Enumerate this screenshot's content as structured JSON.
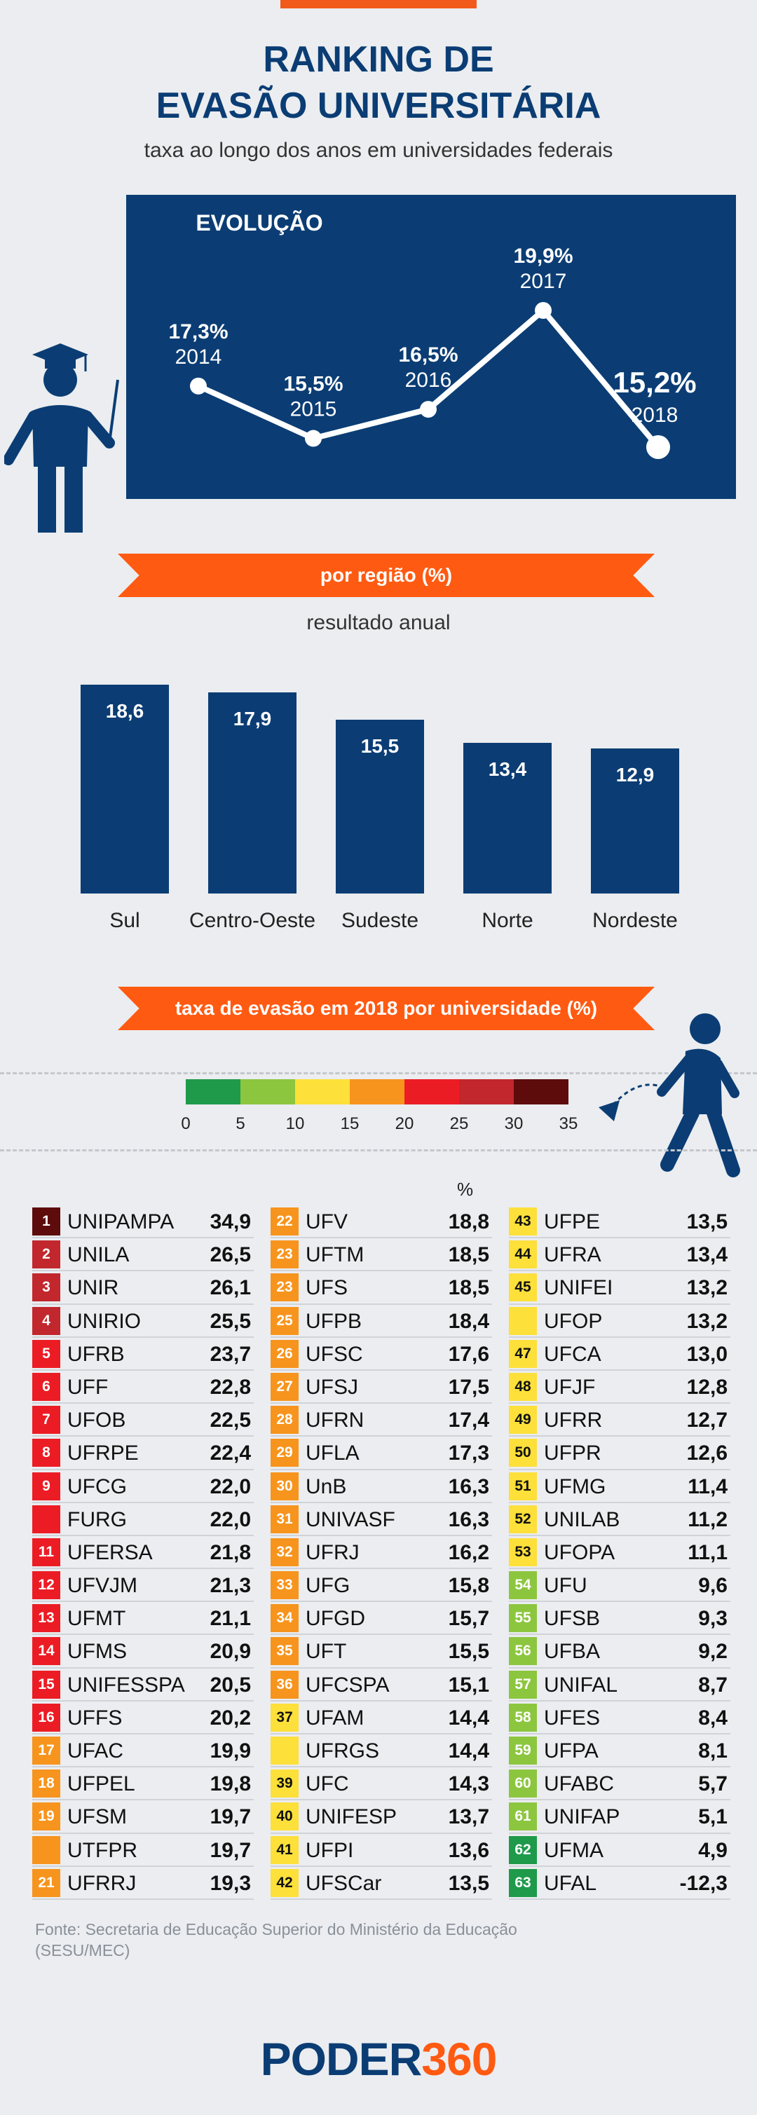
{
  "header": {
    "title_line1": "RANKING DE",
    "title_line2": "EVASÃO UNIVERSITÁRIA",
    "subtitle": "taxa ao longo dos anos em universidades federais"
  },
  "colors": {
    "navy": "#0b3d74",
    "orange": "#ff5a12",
    "scale": [
      "#1e9a4a",
      "#8cc63f",
      "#fde03a",
      "#f7941d",
      "#ec1c24",
      "#c1272d",
      "#5e0b0b"
    ]
  },
  "chart_data": [
    {
      "type": "line",
      "title": "EVOLUÇÃO",
      "x": [
        "2014",
        "2015",
        "2016",
        "2017",
        "2018"
      ],
      "values": [
        17.3,
        15.5,
        16.5,
        19.9,
        15.2
      ],
      "labels": [
        "17,3%",
        "15,5%",
        "16,5%",
        "19,9%",
        "15,2%"
      ]
    },
    {
      "type": "bar",
      "title": "por região (%)",
      "subtitle": "resultado anual",
      "categories": [
        "Sul",
        "Centro-Oeste",
        "Sudeste",
        "Norte",
        "Nordeste"
      ],
      "values": [
        18.6,
        17.9,
        15.5,
        13.4,
        12.9
      ],
      "labels": [
        "18,6",
        "17,9",
        "15,5",
        "13,4",
        "12,9"
      ]
    },
    {
      "type": "table",
      "title": "taxa de evasão em 2018 por universidade (%)",
      "unit_label": "%",
      "legend_ticks": [
        "0",
        "5",
        "10",
        "15",
        "20",
        "25",
        "30",
        "35"
      ],
      "columns": [
        [
          {
            "rank": "1",
            "name": "UNIPAMPA",
            "value": "34,9",
            "c": 6
          },
          {
            "rank": "2",
            "name": "UNILA",
            "value": "26,5",
            "c": 5
          },
          {
            "rank": "3",
            "name": "UNIR",
            "value": "26,1",
            "c": 5
          },
          {
            "rank": "4",
            "name": "UNIRIO",
            "value": "25,5",
            "c": 5
          },
          {
            "rank": "5",
            "name": "UFRB",
            "value": "23,7",
            "c": 4
          },
          {
            "rank": "6",
            "name": "UFF",
            "value": "22,8",
            "c": 4
          },
          {
            "rank": "7",
            "name": "UFOB",
            "value": "22,5",
            "c": 4
          },
          {
            "rank": "8",
            "name": "UFRPE",
            "value": "22,4",
            "c": 4
          },
          {
            "rank": "9",
            "name": "UFCG",
            "value": "22,0",
            "c": 4
          },
          {
            "rank": "",
            "name": "FURG",
            "value": "22,0",
            "c": 4
          },
          {
            "rank": "11",
            "name": "UFERSA",
            "value": "21,8",
            "c": 4
          },
          {
            "rank": "12",
            "name": "UFVJM",
            "value": "21,3",
            "c": 4
          },
          {
            "rank": "13",
            "name": "UFMT",
            "value": "21,1",
            "c": 4
          },
          {
            "rank": "14",
            "name": "UFMS",
            "value": "20,9",
            "c": 4
          },
          {
            "rank": "15",
            "name": "UNIFESSPA",
            "value": "20,5",
            "c": 4
          },
          {
            "rank": "16",
            "name": "UFFS",
            "value": "20,2",
            "c": 4
          },
          {
            "rank": "17",
            "name": "UFAC",
            "value": "19,9",
            "c": 3
          },
          {
            "rank": "18",
            "name": "UFPEL",
            "value": "19,8",
            "c": 3
          },
          {
            "rank": "19",
            "name": "UFSM",
            "value": "19,7",
            "c": 3
          },
          {
            "rank": "",
            "name": "UTFPR",
            "value": "19,7",
            "c": 3
          },
          {
            "rank": "21",
            "name": "UFRRJ",
            "value": "19,3",
            "c": 3
          }
        ],
        [
          {
            "rank": "22",
            "name": "UFV",
            "value": "18,8",
            "c": 3
          },
          {
            "rank": "23",
            "name": "UFTM",
            "value": "18,5",
            "c": 3
          },
          {
            "rank": "23",
            "name": "UFS",
            "value": "18,5",
            "c": 3
          },
          {
            "rank": "25",
            "name": "UFPB",
            "value": "18,4",
            "c": 3
          },
          {
            "rank": "26",
            "name": "UFSC",
            "value": "17,6",
            "c": 3
          },
          {
            "rank": "27",
            "name": "UFSJ",
            "value": "17,5",
            "c": 3
          },
          {
            "rank": "28",
            "name": "UFRN",
            "value": "17,4",
            "c": 3
          },
          {
            "rank": "29",
            "name": "UFLA",
            "value": "17,3",
            "c": 3
          },
          {
            "rank": "30",
            "name": "UnB",
            "value": "16,3",
            "c": 3
          },
          {
            "rank": "31",
            "name": "UNIVASF",
            "value": "16,3",
            "c": 3
          },
          {
            "rank": "32",
            "name": "UFRJ",
            "value": "16,2",
            "c": 3
          },
          {
            "rank": "33",
            "name": "UFG",
            "value": "15,8",
            "c": 3
          },
          {
            "rank": "34",
            "name": "UFGD",
            "value": "15,7",
            "c": 3
          },
          {
            "rank": "35",
            "name": "UFT",
            "value": "15,5",
            "c": 3
          },
          {
            "rank": "36",
            "name": "UFCSPA",
            "value": "15,1",
            "c": 3
          },
          {
            "rank": "37",
            "name": "UFAM",
            "value": "14,4",
            "c": 2
          },
          {
            "rank": "",
            "name": "UFRGS",
            "value": "14,4",
            "c": 2
          },
          {
            "rank": "39",
            "name": "UFC",
            "value": "14,3",
            "c": 2
          },
          {
            "rank": "40",
            "name": "UNIFESP",
            "value": "13,7",
            "c": 2
          },
          {
            "rank": "41",
            "name": "UFPI",
            "value": "13,6",
            "c": 2
          },
          {
            "rank": "42",
            "name": "UFSCar",
            "value": "13,5",
            "c": 2
          }
        ],
        [
          {
            "rank": "43",
            "name": "UFPE",
            "value": "13,5",
            "c": 2
          },
          {
            "rank": "44",
            "name": "UFRA",
            "value": "13,4",
            "c": 2
          },
          {
            "rank": "45",
            "name": "UNIFEI",
            "value": "13,2",
            "c": 2
          },
          {
            "rank": "",
            "name": "UFOP",
            "value": "13,2",
            "c": 2
          },
          {
            "rank": "47",
            "name": "UFCA",
            "value": "13,0",
            "c": 2
          },
          {
            "rank": "48",
            "name": "UFJF",
            "value": "12,8",
            "c": 2
          },
          {
            "rank": "49",
            "name": "UFRR",
            "value": "12,7",
            "c": 2
          },
          {
            "rank": "50",
            "name": "UFPR",
            "value": "12,6",
            "c": 2
          },
          {
            "rank": "51",
            "name": "UFMG",
            "value": "11,4",
            "c": 2
          },
          {
            "rank": "52",
            "name": "UNILAB",
            "value": "11,2",
            "c": 2
          },
          {
            "rank": "53",
            "name": "UFOPA",
            "value": "11,1",
            "c": 2
          },
          {
            "rank": "54",
            "name": "UFU",
            "value": "9,6",
            "c": 1
          },
          {
            "rank": "55",
            "name": "UFSB",
            "value": "9,3",
            "c": 1
          },
          {
            "rank": "56",
            "name": "UFBA",
            "value": "9,2",
            "c": 1
          },
          {
            "rank": "57",
            "name": "UNIFAL",
            "value": "8,7",
            "c": 1
          },
          {
            "rank": "58",
            "name": "UFES",
            "value": "8,4",
            "c": 1
          },
          {
            "rank": "59",
            "name": "UFPA",
            "value": "8,1",
            "c": 1
          },
          {
            "rank": "60",
            "name": "UFABC",
            "value": "5,7",
            "c": 1
          },
          {
            "rank": "61",
            "name": "UNIFAP",
            "value": "5,1",
            "c": 1
          },
          {
            "rank": "62",
            "name": "UFMA",
            "value": "4,9",
            "c": 0
          },
          {
            "rank": "63",
            "name": "UFAL",
            "value": "-12,3",
            "c": 0
          }
        ]
      ]
    }
  ],
  "footer": {
    "source": "Fonte: Secretaria de Educação Superior do Ministério da Educação (SESU/MEC)",
    "logo_main": "PODER",
    "logo_num": "360"
  }
}
